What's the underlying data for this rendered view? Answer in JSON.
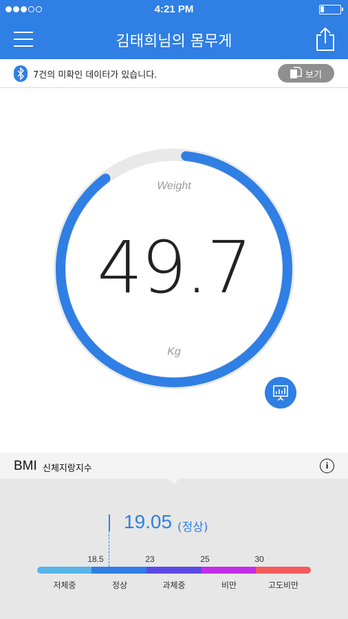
{
  "status_bar": {
    "time": "4:21 PM",
    "signal_filled": 3,
    "signal_total": 5
  },
  "nav": {
    "title": "김태희님의 몸무게"
  },
  "notice": {
    "text": "7건의 미확인 데이터가 있습니다.",
    "view_button": "보기"
  },
  "weight": {
    "label": "Weight",
    "value": "49.7",
    "unit": "Kg",
    "progress": 0.88
  },
  "bmi": {
    "title": "BMI",
    "subtitle": "신체지랑지수",
    "value": "19.05",
    "status": "(정상)",
    "ticks": [
      "18.5",
      "23",
      "25",
      "30"
    ],
    "categories": [
      "저체중",
      "정상",
      "과체중",
      "비만",
      "고도비만"
    ],
    "colors": [
      "#56b4ea",
      "#2f7fe4",
      "#5b49e6",
      "#c22de6",
      "#f45a5a"
    ]
  },
  "colors": {
    "accent": "#2f7fe4",
    "track": "#e9e9e9"
  }
}
